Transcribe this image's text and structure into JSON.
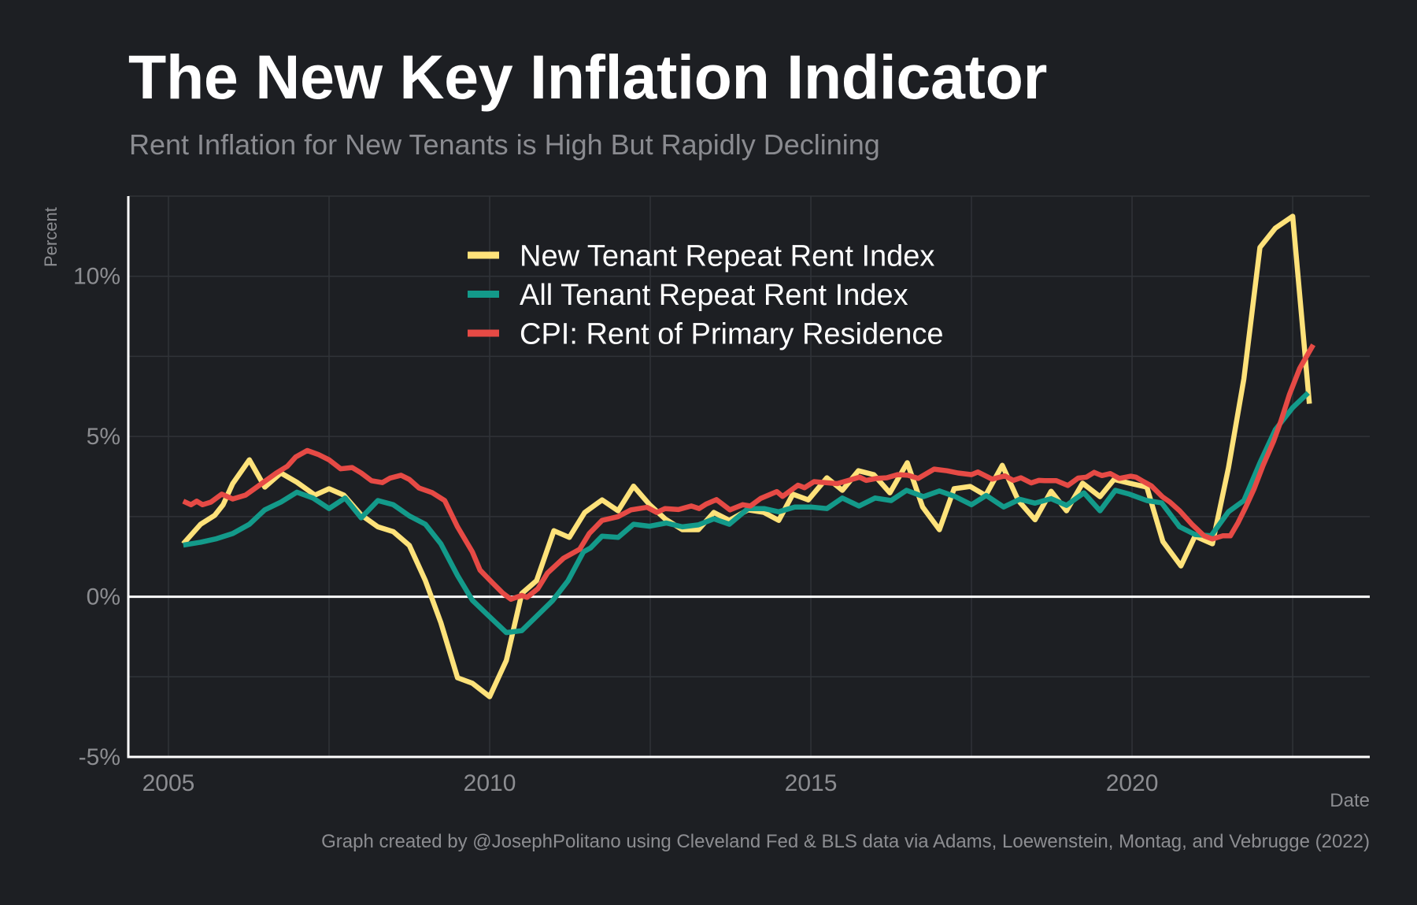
{
  "title": "The New Key Inflation Indicator",
  "subtitle": "Rent Inflation for New Tenants is High But Rapidly Declining",
  "caption": "Graph created by @JosephPolitano using Cleveland Fed & BLS data via Adams, Loewenstein, Montag, and Vebrugge (2022)",
  "colors": {
    "background": "#1d1f23",
    "grid": "#303338",
    "axis": "#ffffff",
    "new_tenant": "#fee27a",
    "all_tenant": "#139a8a",
    "cpi_rent": "#e64a45"
  },
  "chart_data": {
    "type": "line",
    "title": "The New Key Inflation Indicator",
    "subtitle": "Rent Inflation for New Tenants is High But Rapidly Declining",
    "xlabel": "Date",
    "ylabel": "Percent",
    "xlim": [
      2004.375,
      2023.7
    ],
    "ylim": [
      -5,
      12.5
    ],
    "x_ticks": [
      2005,
      2010,
      2015,
      2020
    ],
    "x_tick_labels": [
      "2005",
      "2010",
      "2015",
      "2020"
    ],
    "x_minor_gridlines": [
      2007.5,
      2012.5,
      2017.5,
      2022.5
    ],
    "y_ticks": [
      -5,
      0,
      5,
      10
    ],
    "y_tick_labels": [
      "-5%",
      "0%",
      "5%",
      "10%"
    ],
    "y_minor_gridlines": [
      -2.5,
      2.5,
      7.5,
      12.5
    ],
    "grid": true,
    "zero_line": true,
    "legend_position": "top-center",
    "series": [
      {
        "name": "New Tenant Repeat Rent Index",
        "color_key": "new_tenant",
        "points": [
          [
            2005.23,
            1.65
          ],
          [
            2005.5,
            2.26
          ],
          [
            2005.72,
            2.54
          ],
          [
            2005.85,
            2.87
          ],
          [
            2006.0,
            3.53
          ],
          [
            2006.26,
            4.27
          ],
          [
            2006.5,
            3.42
          ],
          [
            2006.75,
            3.86
          ],
          [
            2007.0,
            3.57
          ],
          [
            2007.28,
            3.17
          ],
          [
            2007.5,
            3.37
          ],
          [
            2007.73,
            3.17
          ],
          [
            2008.0,
            2.55
          ],
          [
            2008.26,
            2.18
          ],
          [
            2008.5,
            2.03
          ],
          [
            2008.75,
            1.6
          ],
          [
            2009.0,
            0.5
          ],
          [
            2009.24,
            -0.81
          ],
          [
            2009.5,
            -2.53
          ],
          [
            2009.73,
            -2.7
          ],
          [
            2010.0,
            -3.12
          ],
          [
            2010.26,
            -1.99
          ],
          [
            2010.5,
            0.1
          ],
          [
            2010.73,
            0.5
          ],
          [
            2011.0,
            2.06
          ],
          [
            2011.24,
            1.85
          ],
          [
            2011.48,
            2.63
          ],
          [
            2011.75,
            3.02
          ],
          [
            2012.0,
            2.68
          ],
          [
            2012.24,
            3.45
          ],
          [
            2012.49,
            2.87
          ],
          [
            2012.73,
            2.43
          ],
          [
            2013.0,
            2.09
          ],
          [
            2013.25,
            2.09
          ],
          [
            2013.49,
            2.63
          ],
          [
            2013.73,
            2.38
          ],
          [
            2014.02,
            2.71
          ],
          [
            2014.27,
            2.63
          ],
          [
            2014.5,
            2.38
          ],
          [
            2014.72,
            3.2
          ],
          [
            2014.96,
            3.02
          ],
          [
            2015.25,
            3.71
          ],
          [
            2015.49,
            3.32
          ],
          [
            2015.74,
            3.93
          ],
          [
            2015.98,
            3.81
          ],
          [
            2016.23,
            3.24
          ],
          [
            2016.5,
            4.18
          ],
          [
            2016.74,
            2.8
          ],
          [
            2017.0,
            2.09
          ],
          [
            2017.23,
            3.37
          ],
          [
            2017.48,
            3.44
          ],
          [
            2017.72,
            3.16
          ],
          [
            2017.98,
            4.1
          ],
          [
            2018.23,
            3.0
          ],
          [
            2018.49,
            2.4
          ],
          [
            2018.74,
            3.29
          ],
          [
            2018.98,
            2.68
          ],
          [
            2019.23,
            3.54
          ],
          [
            2019.5,
            3.12
          ],
          [
            2019.72,
            3.66
          ],
          [
            2019.96,
            3.54
          ],
          [
            2020.23,
            3.42
          ],
          [
            2020.48,
            1.72
          ],
          [
            2020.76,
            0.96
          ],
          [
            2020.98,
            1.89
          ],
          [
            2021.25,
            1.65
          ],
          [
            2021.5,
            4.02
          ],
          [
            2021.74,
            6.8
          ],
          [
            2021.99,
            10.9
          ],
          [
            2022.23,
            11.5
          ],
          [
            2022.5,
            11.87
          ],
          [
            2022.76,
            6.02
          ]
        ]
      },
      {
        "name": "All Tenant Repeat Rent Index",
        "color_key": "all_tenant",
        "points": [
          [
            2005.23,
            1.61
          ],
          [
            2005.5,
            1.7
          ],
          [
            2005.75,
            1.81
          ],
          [
            2006.0,
            1.97
          ],
          [
            2006.26,
            2.26
          ],
          [
            2006.5,
            2.71
          ],
          [
            2006.75,
            2.95
          ],
          [
            2007.0,
            3.26
          ],
          [
            2007.25,
            3.08
          ],
          [
            2007.5,
            2.75
          ],
          [
            2007.75,
            3.08
          ],
          [
            2008.0,
            2.46
          ],
          [
            2008.26,
            3.0
          ],
          [
            2008.5,
            2.87
          ],
          [
            2008.75,
            2.52
          ],
          [
            2009.0,
            2.26
          ],
          [
            2009.24,
            1.65
          ],
          [
            2009.5,
            0.66
          ],
          [
            2009.73,
            -0.11
          ],
          [
            2009.97,
            -0.57
          ],
          [
            2010.26,
            -1.12
          ],
          [
            2010.5,
            -1.06
          ],
          [
            2010.73,
            -0.61
          ],
          [
            2010.98,
            -0.12
          ],
          [
            2011.22,
            0.5
          ],
          [
            2011.46,
            1.4
          ],
          [
            2011.57,
            1.52
          ],
          [
            2011.75,
            1.89
          ],
          [
            2012.0,
            1.85
          ],
          [
            2012.24,
            2.26
          ],
          [
            2012.49,
            2.2
          ],
          [
            2012.75,
            2.3
          ],
          [
            2013.0,
            2.18
          ],
          [
            2013.25,
            2.24
          ],
          [
            2013.49,
            2.43
          ],
          [
            2013.73,
            2.26
          ],
          [
            2014.02,
            2.75
          ],
          [
            2014.27,
            2.75
          ],
          [
            2014.5,
            2.65
          ],
          [
            2014.75,
            2.8
          ],
          [
            2015.0,
            2.8
          ],
          [
            2015.25,
            2.75
          ],
          [
            2015.49,
            3.08
          ],
          [
            2015.75,
            2.83
          ],
          [
            2016.0,
            3.08
          ],
          [
            2016.25,
            3.0
          ],
          [
            2016.49,
            3.32
          ],
          [
            2016.75,
            3.12
          ],
          [
            2017.0,
            3.3
          ],
          [
            2017.25,
            3.12
          ],
          [
            2017.5,
            2.87
          ],
          [
            2017.73,
            3.16
          ],
          [
            2018.0,
            2.8
          ],
          [
            2018.25,
            3.04
          ],
          [
            2018.49,
            2.92
          ],
          [
            2018.74,
            3.06
          ],
          [
            2018.98,
            2.85
          ],
          [
            2019.25,
            3.24
          ],
          [
            2019.5,
            2.68
          ],
          [
            2019.74,
            3.32
          ],
          [
            2019.96,
            3.2
          ],
          [
            2020.23,
            3.0
          ],
          [
            2020.46,
            2.93
          ],
          [
            2020.74,
            2.18
          ],
          [
            2020.98,
            1.94
          ],
          [
            2021.23,
            1.9
          ],
          [
            2021.5,
            2.65
          ],
          [
            2021.74,
            3.0
          ],
          [
            2021.99,
            4.18
          ],
          [
            2022.23,
            5.21
          ],
          [
            2022.5,
            5.9
          ],
          [
            2022.74,
            6.36
          ]
        ]
      },
      {
        "name": "CPI: Rent of Primary Residence",
        "color_key": "cpi_rent",
        "points": [
          [
            2005.23,
            2.98
          ],
          [
            2005.35,
            2.87
          ],
          [
            2005.44,
            2.98
          ],
          [
            2005.53,
            2.87
          ],
          [
            2005.66,
            2.95
          ],
          [
            2005.83,
            3.2
          ],
          [
            2006.0,
            3.05
          ],
          [
            2006.2,
            3.17
          ],
          [
            2006.43,
            3.5
          ],
          [
            2006.68,
            3.86
          ],
          [
            2006.85,
            4.07
          ],
          [
            2006.98,
            4.36
          ],
          [
            2007.16,
            4.56
          ],
          [
            2007.33,
            4.44
          ],
          [
            2007.5,
            4.27
          ],
          [
            2007.68,
            3.99
          ],
          [
            2007.86,
            4.03
          ],
          [
            2008.0,
            3.86
          ],
          [
            2008.16,
            3.62
          ],
          [
            2008.33,
            3.56
          ],
          [
            2008.45,
            3.7
          ],
          [
            2008.62,
            3.79
          ],
          [
            2008.75,
            3.66
          ],
          [
            2008.9,
            3.39
          ],
          [
            2009.1,
            3.25
          ],
          [
            2009.3,
            3.0
          ],
          [
            2009.5,
            2.18
          ],
          [
            2009.73,
            1.4
          ],
          [
            2009.85,
            0.83
          ],
          [
            2010.05,
            0.42
          ],
          [
            2010.2,
            0.12
          ],
          [
            2010.33,
            -0.08
          ],
          [
            2010.5,
            0.04
          ],
          [
            2010.58,
            -0.02
          ],
          [
            2010.75,
            0.25
          ],
          [
            2010.9,
            0.74
          ],
          [
            2011.15,
            1.2
          ],
          [
            2011.4,
            1.48
          ],
          [
            2011.55,
            1.97
          ],
          [
            2011.75,
            2.38
          ],
          [
            2012.0,
            2.5
          ],
          [
            2012.2,
            2.71
          ],
          [
            2012.45,
            2.79
          ],
          [
            2012.6,
            2.63
          ],
          [
            2012.73,
            2.75
          ],
          [
            2012.94,
            2.72
          ],
          [
            2013.14,
            2.83
          ],
          [
            2013.26,
            2.75
          ],
          [
            2013.37,
            2.89
          ],
          [
            2013.53,
            3.03
          ],
          [
            2013.74,
            2.71
          ],
          [
            2013.94,
            2.87
          ],
          [
            2014.06,
            2.83
          ],
          [
            2014.22,
            3.07
          ],
          [
            2014.47,
            3.28
          ],
          [
            2014.56,
            3.13
          ],
          [
            2014.8,
            3.48
          ],
          [
            2014.9,
            3.4
          ],
          [
            2015.05,
            3.59
          ],
          [
            2015.16,
            3.57
          ],
          [
            2015.41,
            3.53
          ],
          [
            2015.55,
            3.61
          ],
          [
            2015.76,
            3.73
          ],
          [
            2015.86,
            3.63
          ],
          [
            2016.02,
            3.69
          ],
          [
            2016.18,
            3.71
          ],
          [
            2016.35,
            3.81
          ],
          [
            2016.51,
            3.79
          ],
          [
            2016.67,
            3.69
          ],
          [
            2016.92,
            3.98
          ],
          [
            2017.12,
            3.93
          ],
          [
            2017.29,
            3.86
          ],
          [
            2017.5,
            3.81
          ],
          [
            2017.6,
            3.89
          ],
          [
            2017.82,
            3.67
          ],
          [
            2018.02,
            3.77
          ],
          [
            2018.15,
            3.63
          ],
          [
            2018.27,
            3.71
          ],
          [
            2018.43,
            3.55
          ],
          [
            2018.55,
            3.63
          ],
          [
            2018.64,
            3.62
          ],
          [
            2018.82,
            3.62
          ],
          [
            2019.0,
            3.47
          ],
          [
            2019.16,
            3.7
          ],
          [
            2019.29,
            3.73
          ],
          [
            2019.41,
            3.88
          ],
          [
            2019.53,
            3.78
          ],
          [
            2019.66,
            3.84
          ],
          [
            2019.8,
            3.69
          ],
          [
            2019.98,
            3.76
          ],
          [
            2020.06,
            3.73
          ],
          [
            2020.18,
            3.59
          ],
          [
            2020.3,
            3.46
          ],
          [
            2020.47,
            3.12
          ],
          [
            2020.59,
            2.95
          ],
          [
            2020.74,
            2.68
          ],
          [
            2020.93,
            2.26
          ],
          [
            2021.12,
            1.9
          ],
          [
            2021.25,
            1.8
          ],
          [
            2021.41,
            1.9
          ],
          [
            2021.53,
            1.9
          ],
          [
            2021.65,
            2.31
          ],
          [
            2021.77,
            2.8
          ],
          [
            2021.9,
            3.37
          ],
          [
            2022.04,
            4.1
          ],
          [
            2022.2,
            4.84
          ],
          [
            2022.32,
            5.5
          ],
          [
            2022.45,
            6.31
          ],
          [
            2022.61,
            7.13
          ],
          [
            2022.82,
            7.86
          ]
        ]
      }
    ]
  }
}
